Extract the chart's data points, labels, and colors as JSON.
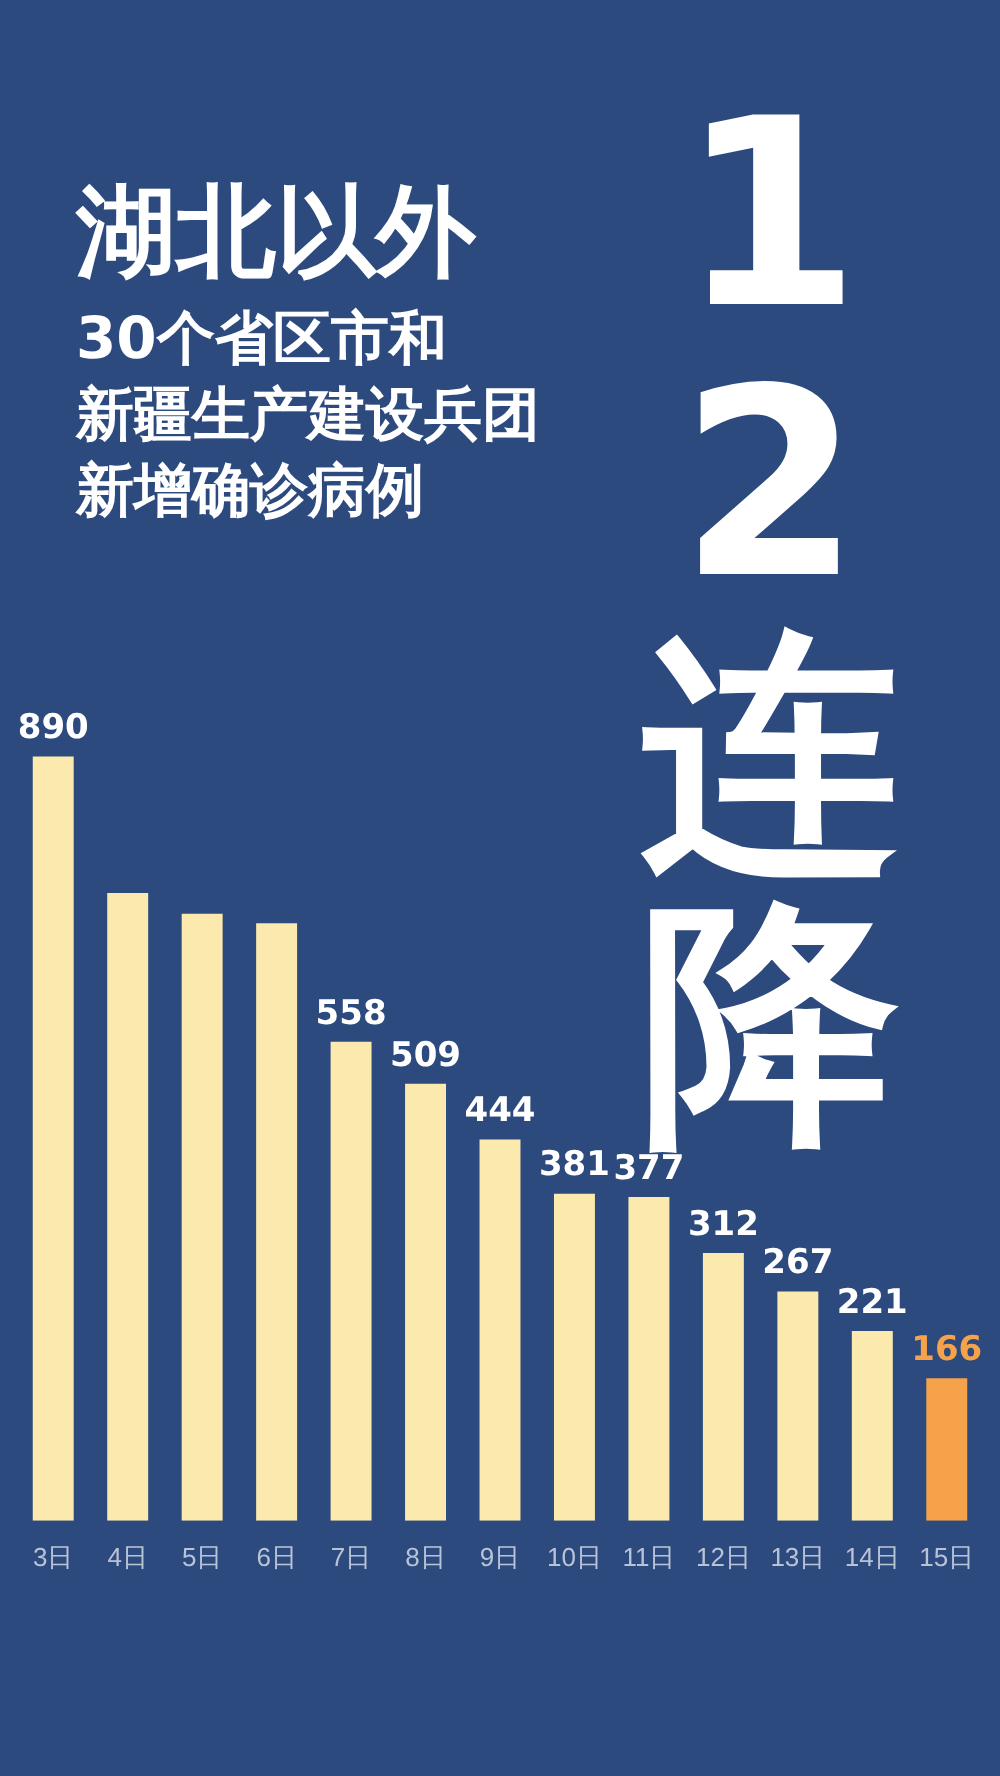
{
  "chart_data": {
    "type": "bar",
    "title": "湖北以外",
    "subtitle": "12连降",
    "annotations": [
      "30个省区市和",
      "新疆生产建设兵团",
      "新增确诊病例"
    ],
    "categories": [
      "3日",
      "4日",
      "5日",
      "6日",
      "7日",
      "8日",
      "9日",
      "10日",
      "11日",
      "12日",
      "13日",
      "14日",
      "15日"
    ],
    "values": [
      890,
      731,
      707,
      696,
      558,
      509,
      444,
      381,
      377,
      312,
      267,
      221,
      166
    ],
    "value_labels": [
      "890",
      null,
      null,
      null,
      "558",
      "509",
      "444",
      "381",
      "377",
      "312",
      "267",
      "221",
      "166"
    ],
    "color": "#fbe9ae",
    "colors": [
      "#fbe9ae",
      "#fbe9ae",
      "#fbe9ae",
      "#fbe9ae",
      "#fbe9ae",
      "#fbe9ae",
      "#fbe9ae",
      "#fbe9ae",
      "#fbe9ae",
      "#fbe9ae",
      "#fbe9ae",
      "#fbe9ae",
      "#f5a24b"
    ],
    "tick_labels": "x",
    "grid": false,
    "legend": false
  }
}
